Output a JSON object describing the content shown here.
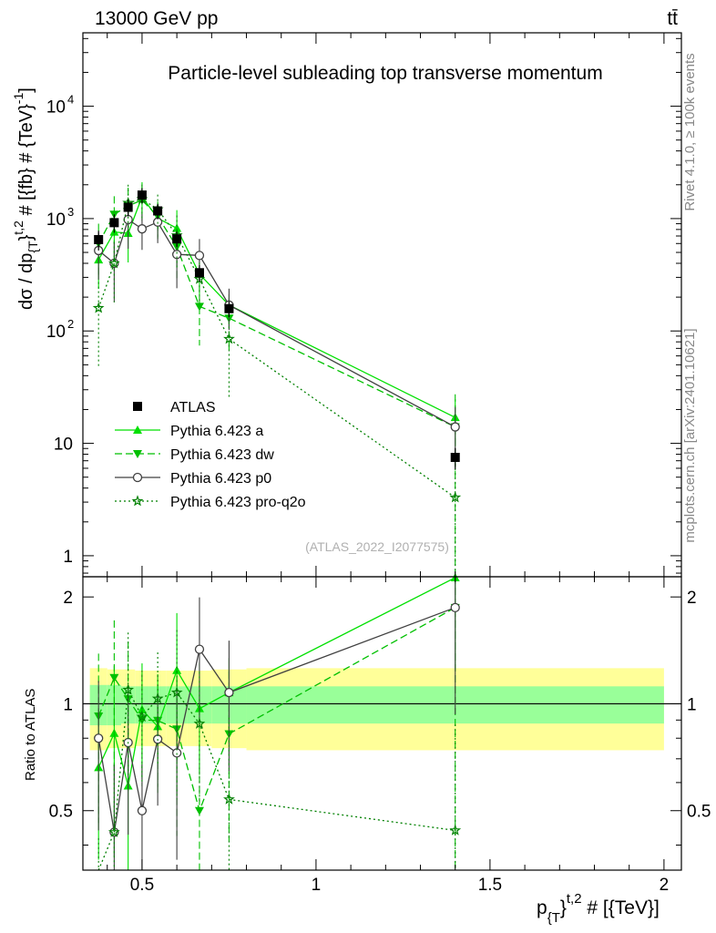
{
  "header": {
    "left": "13000 GeV pp",
    "right": "tt̄"
  },
  "side_labels": {
    "rivet": "Rivet 4.1.0, ≥ 100k events",
    "mcplots": "mcplots.cern.ch [arXiv:2401.10621]"
  },
  "chart_data": {
    "type": "line",
    "title": "Particle-level subleading top transverse momentum",
    "watermark": "(ATLAS_2022_I2077575)",
    "xlabel": "p_{T}^{t,2} # [{TeV}]",
    "ylabel": "dσ / dp_{T}^{t,2} # [{fb} # {TeV}^{-1}]",
    "ratio_ylabel": "Ratio to ATLAS",
    "xlim": [
      0.33,
      2.05
    ],
    "ylim_main": [
      0.65,
      45000
    ],
    "ylim_ratio": [
      0.34,
      2.28
    ],
    "x_ticks": [
      0.5,
      1,
      1.5,
      2
    ],
    "x_tick_labels": [
      "0.5",
      "1",
      "1.5",
      "2"
    ],
    "y_ticks_main": [
      1,
      10,
      100,
      1000,
      10000
    ],
    "y_tick_labels_main": [
      {
        "base": "1",
        "exp": ""
      },
      {
        "base": "10",
        "exp": ""
      },
      {
        "base": "10",
        "exp": "2"
      },
      {
        "base": "10",
        "exp": "3"
      },
      {
        "base": "10",
        "exp": "4"
      }
    ],
    "y_ticks_ratio": [
      0.5,
      1,
      2
    ],
    "y_tick_labels_ratio": [
      "0.5",
      "1",
      "2"
    ],
    "legend_position": "middle-left",
    "bin_edges": [
      0.35,
      0.4,
      0.44,
      0.48,
      0.52,
      0.57,
      0.63,
      0.7,
      0.8,
      2.0
    ],
    "data": {
      "name": "ATLAS",
      "x": [
        0.375,
        0.42,
        0.46,
        0.5,
        0.545,
        0.6,
        0.665,
        0.75,
        1.4
      ],
      "y": [
        650,
        920,
        1260,
        1620,
        1170,
        660,
        330,
        158,
        7.5
      ],
      "err_lo": [
        130,
        170,
        210,
        250,
        180,
        100,
        55,
        25,
        1.6
      ],
      "err_hi": [
        130,
        170,
        210,
        250,
        180,
        100,
        55,
        25,
        1.6
      ],
      "stat_band": [
        0.13,
        0.13,
        0.12,
        0.12,
        0.12,
        0.12,
        0.12,
        0.12,
        0.12
      ],
      "total_band": [
        0.26,
        0.25,
        0.25,
        0.24,
        0.24,
        0.24,
        0.24,
        0.25,
        0.26
      ],
      "marker": "square",
      "color": "#000000"
    },
    "series": [
      {
        "name": "Pythia 6.423 a",
        "color": "#00e000",
        "dash": "",
        "marker": "triangle-up",
        "x": [
          0.375,
          0.42,
          0.46,
          0.5,
          0.545,
          0.6,
          0.665,
          0.75,
          1.4
        ],
        "y": [
          430,
          760,
          740,
          1560,
          1010,
          820,
          320,
          170,
          17
        ],
        "err_lo": [
          0.45,
          0.55,
          0.45,
          0.35,
          0.35,
          0.45,
          0.35,
          0.25,
          0.45
        ],
        "err_hi": [
          0.45,
          0.55,
          0.45,
          0.35,
          0.35,
          0.45,
          0.35,
          0.25,
          0.45
        ]
      },
      {
        "name": "Pythia 6.423 dw",
        "color": "#00c000",
        "dash": "8,4",
        "marker": "triangle-down",
        "x": [
          0.375,
          0.42,
          0.46,
          0.5,
          0.545,
          0.6,
          0.665,
          0.75,
          1.4
        ],
        "y": [
          600,
          1090,
          1300,
          1460,
          1050,
          560,
          165,
          130,
          14
        ],
        "err_lo": [
          0.5,
          0.45,
          0.45,
          0.35,
          0.35,
          0.5,
          0.55,
          0.5,
          0.95
        ],
        "err_hi": [
          0.5,
          0.45,
          0.45,
          0.35,
          0.35,
          0.5,
          0.55,
          0.5,
          0.95
        ]
      },
      {
        "name": "Pythia 6.423 p0",
        "color": "#404040",
        "dash": "",
        "marker": "circle-open",
        "x": [
          0.375,
          0.42,
          0.46,
          0.5,
          0.545,
          0.6,
          0.665,
          0.75,
          1.4
        ],
        "y": [
          520,
          400,
          980,
          810,
          930,
          480,
          470,
          170,
          14
        ],
        "err_lo": [
          0.45,
          0.55,
          0.45,
          0.35,
          0.35,
          0.5,
          0.4,
          0.4,
          0.5
        ],
        "err_hi": [
          0.45,
          0.55,
          0.45,
          0.35,
          0.35,
          0.5,
          0.4,
          0.4,
          0.5
        ]
      },
      {
        "name": "Pythia 6.423 pro-q2o",
        "color": "#008000",
        "dash": "2,3",
        "marker": "star-open",
        "x": [
          0.375,
          0.42,
          0.46,
          0.5,
          0.545,
          0.6,
          0.665,
          0.75,
          1.4
        ],
        "y": [
          160,
          400,
          1380,
          1490,
          1210,
          710,
          290,
          85,
          3.3
        ],
        "err_lo": [
          0.7,
          0.55,
          0.45,
          0.35,
          0.35,
          0.5,
          0.4,
          0.7,
          0.99
        ],
        "err_hi": [
          0.7,
          0.55,
          0.45,
          0.35,
          0.35,
          0.5,
          0.4,
          0.7,
          0.99
        ]
      }
    ]
  }
}
